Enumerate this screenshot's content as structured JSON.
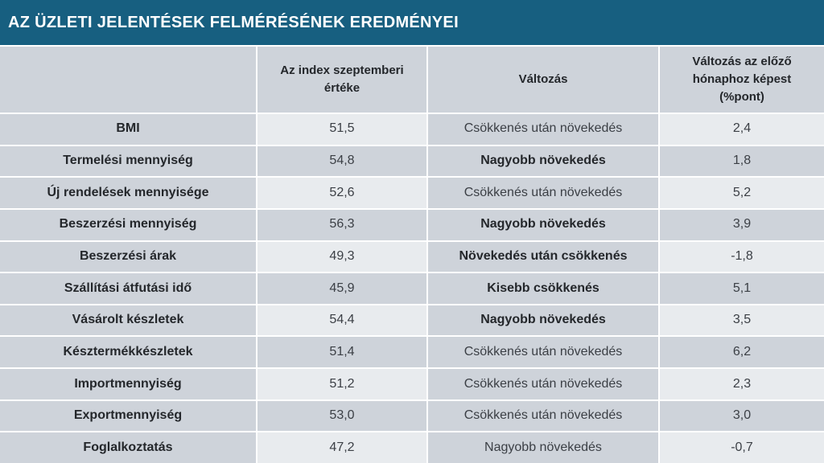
{
  "title": "AZ ÜZLETI JELENTÉSEK FELMÉRÉSÉNEK EREDMÉNYEI",
  "colors": {
    "header_bar": "#175F80",
    "cell_gray": "#CED3DA",
    "cell_light": "#E8EBEE",
    "separator": "#FFFFFF",
    "title_text": "#FFFFFF",
    "text_dark": "#24272B",
    "text_regular": "#3B3F45"
  },
  "chart_data": {
    "type": "table",
    "title": "AZ ÜZLETI JELENTÉSEK FELMÉRÉSÉNEK EREDMÉNYEI",
    "columns": [
      "",
      "Az index szeptemberi értéke",
      "Változás",
      "Változás az előző hónaphoz képest (%pont)"
    ],
    "rows": [
      {
        "label": "BMI",
        "value": "51,5",
        "change": "Csökkenés után növekedés",
        "change_bold": false,
        "delta": "2,4"
      },
      {
        "label": "Termelési mennyiség",
        "value": "54,8",
        "change": "Nagyobb növekedés",
        "change_bold": true,
        "delta": "1,8"
      },
      {
        "label": "Új rendelések mennyisége",
        "value": "52,6",
        "change": "Csökkenés után növekedés",
        "change_bold": false,
        "delta": "5,2"
      },
      {
        "label": "Beszerzési mennyiség",
        "value": "56,3",
        "change": "Nagyobb növekedés",
        "change_bold": true,
        "delta": "3,9"
      },
      {
        "label": "Beszerzési árak",
        "value": "49,3",
        "change": "Növekedés után csökkenés",
        "change_bold": true,
        "delta": "-1,8"
      },
      {
        "label": "Szállítási átfutási idő",
        "value": "45,9",
        "change": "Kisebb csökkenés",
        "change_bold": true,
        "delta": "5,1"
      },
      {
        "label": "Vásárolt készletek",
        "value": "54,4",
        "change": "Nagyobb növekedés",
        "change_bold": true,
        "delta": "3,5"
      },
      {
        "label": "Késztermékkészletek",
        "value": "51,4",
        "change": "Csökkenés után növekedés",
        "change_bold": false,
        "delta": "6,2"
      },
      {
        "label": "Importmennyiség",
        "value": "51,2",
        "change": "Csökkenés után növekedés",
        "change_bold": false,
        "delta": "2,3"
      },
      {
        "label": "Exportmennyiség",
        "value": "53,0",
        "change": "Csökkenés után növekedés",
        "change_bold": false,
        "delta": "3,0"
      },
      {
        "label": "Foglalkoztatás",
        "value": "47,2",
        "change": "Nagyobb növekedés",
        "change_bold": false,
        "delta": "-0,7"
      }
    ]
  }
}
